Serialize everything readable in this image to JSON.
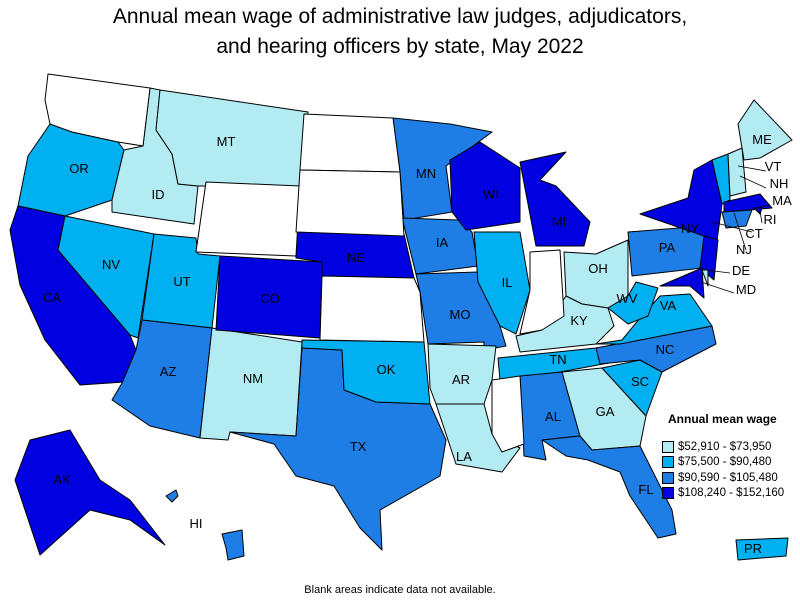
{
  "title_line1": "Annual mean wage of administrative law judges, adjudicators,",
  "title_line2": "and hearing officers by state, May 2022",
  "legend": {
    "title": "Annual mean wage",
    "items": [
      {
        "label": "$52,910 - $73,950",
        "color": "#b2ebf2"
      },
      {
        "label": "$75,500 - $90,480",
        "color": "#00b0f0"
      },
      {
        "label": "$90,590 - $105,480",
        "color": "#1e7ee6"
      },
      {
        "label": "$108,240 - $152,160",
        "color": "#0000e0"
      }
    ]
  },
  "no_data_color": "#ffffff",
  "footnote": "Blank areas indicate data not available.",
  "states": [
    {
      "code": "OR",
      "label": "OR",
      "tier": 2
    },
    {
      "code": "ID",
      "label": "ID",
      "tier": 1
    },
    {
      "code": "MT",
      "label": "MT",
      "tier": 1
    },
    {
      "code": "CA",
      "label": "CA",
      "tier": 4
    },
    {
      "code": "NV",
      "label": "NV",
      "tier": 2
    },
    {
      "code": "UT",
      "label": "UT",
      "tier": 2
    },
    {
      "code": "AZ",
      "label": "AZ",
      "tier": 3
    },
    {
      "code": "NM",
      "label": "NM",
      "tier": 1
    },
    {
      "code": "CO",
      "label": "CO",
      "tier": 4
    },
    {
      "code": "NE",
      "label": "NE",
      "tier": 4
    },
    {
      "code": "TX",
      "label": "TX",
      "tier": 3
    },
    {
      "code": "OK",
      "label": "OK",
      "tier": 2
    },
    {
      "code": "MN",
      "label": "MN",
      "tier": 3
    },
    {
      "code": "IA",
      "label": "IA",
      "tier": 3
    },
    {
      "code": "MO",
      "label": "MO",
      "tier": 3
    },
    {
      "code": "AR",
      "label": "AR",
      "tier": 1
    },
    {
      "code": "LA",
      "label": "LA",
      "tier": 1
    },
    {
      "code": "WI",
      "label": "WI",
      "tier": 4
    },
    {
      "code": "IL",
      "label": "IL",
      "tier": 2
    },
    {
      "code": "MI",
      "label": "MI",
      "tier": 4
    },
    {
      "code": "OH",
      "label": "OH",
      "tier": 1
    },
    {
      "code": "KY",
      "label": "KY",
      "tier": 1
    },
    {
      "code": "TN",
      "label": "TN",
      "tier": 2
    },
    {
      "code": "AL",
      "label": "AL",
      "tier": 3
    },
    {
      "code": "GA",
      "label": "GA",
      "tier": 1
    },
    {
      "code": "FL",
      "label": "FL",
      "tier": 3
    },
    {
      "code": "SC",
      "label": "SC",
      "tier": 2
    },
    {
      "code": "NC",
      "label": "NC",
      "tier": 3
    },
    {
      "code": "VA",
      "label": "VA",
      "tier": 2
    },
    {
      "code": "WV",
      "label": "WV",
      "tier": 2
    },
    {
      "code": "PA",
      "label": "PA",
      "tier": 3
    },
    {
      "code": "NY",
      "label": "NY",
      "tier": 4
    },
    {
      "code": "ME",
      "label": "ME",
      "tier": 1
    },
    {
      "code": "VT",
      "label": "VT",
      "tier": 2
    },
    {
      "code": "NH",
      "label": "NH",
      "tier": 1
    },
    {
      "code": "MA",
      "label": "MA",
      "tier": 4
    },
    {
      "code": "RI",
      "label": "RI",
      "tier": 4
    },
    {
      "code": "CT",
      "label": "CT",
      "tier": 3
    },
    {
      "code": "NJ",
      "label": "NJ",
      "tier": 4
    },
    {
      "code": "DE",
      "label": "DE",
      "tier": 1
    },
    {
      "code": "MD",
      "label": "MD",
      "tier": 4
    },
    {
      "code": "AK",
      "label": "AK",
      "tier": 4
    },
    {
      "code": "HI",
      "label": "HI",
      "tier": 3
    },
    {
      "code": "PR",
      "label": "PR",
      "tier": 2
    },
    {
      "code": "WA",
      "tier": 0
    },
    {
      "code": "WY",
      "tier": 0
    },
    {
      "code": "ND",
      "tier": 0
    },
    {
      "code": "SD",
      "tier": 0
    },
    {
      "code": "KS",
      "tier": 0
    },
    {
      "code": "IN",
      "tier": 0
    },
    {
      "code": "MS",
      "tier": 0
    }
  ]
}
